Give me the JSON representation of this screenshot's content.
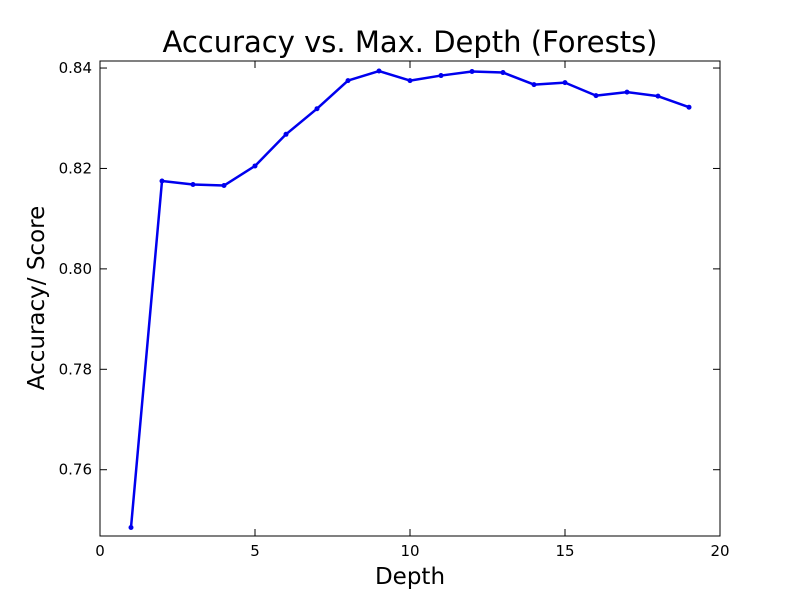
{
  "chart_data": {
    "type": "line",
    "title": "Accuracy vs. Max. Depth (Forests)",
    "xlabel": "Depth",
    "ylabel": "Accuracy/ Score",
    "xlim": [
      0,
      20
    ],
    "ylim": [
      0.7468,
      0.8414
    ],
    "xticks": [
      0,
      5,
      10,
      15,
      20
    ],
    "yticks": [
      0.76,
      0.78,
      0.8,
      0.82,
      0.84
    ],
    "xtick_labels": [
      "0",
      "5",
      "10",
      "15",
      "20"
    ],
    "ytick_labels": [
      "0.76",
      "0.78",
      "0.80",
      "0.82",
      "0.84"
    ],
    "grid": false,
    "series": [
      {
        "color": "#0000ee",
        "marker": "circle",
        "x": [
          1,
          2,
          3,
          4,
          5,
          6,
          7,
          8,
          9,
          10,
          11,
          12,
          13,
          14,
          15,
          16,
          17,
          18,
          19
        ],
        "y": [
          0.7485,
          0.8175,
          0.8168,
          0.8166,
          0.8205,
          0.8268,
          0.8319,
          0.8375,
          0.8394,
          0.8375,
          0.8385,
          0.8393,
          0.8391,
          0.8367,
          0.8371,
          0.8345,
          0.8352,
          0.8344,
          0.8322
        ]
      }
    ]
  }
}
